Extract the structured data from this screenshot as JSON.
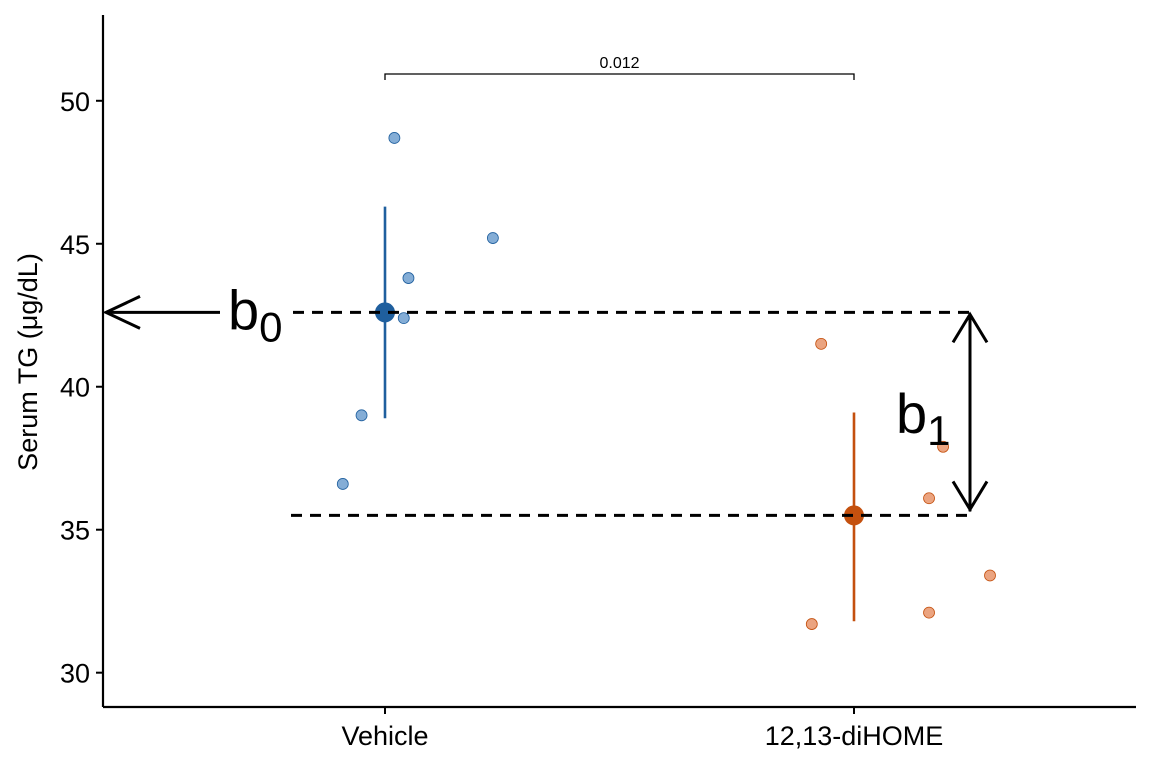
{
  "chart_data": {
    "type": "scatter",
    "ylabel": "Serum TG (μg/dL)",
    "xlabel": "",
    "categories": [
      "Vehicle",
      "12,13-diHOME"
    ],
    "ylim": [
      28.8,
      53.0
    ],
    "yticks": [
      30,
      35,
      40,
      45,
      50
    ],
    "grid": false,
    "series": [
      {
        "category": "Vehicle",
        "color": "#1f5f9e",
        "point_color": "#6f9fcf",
        "points": [
          {
            "x_jitter": 0.02,
            "y": 48.7
          },
          {
            "x_jitter": 0.23,
            "y": 45.2
          },
          {
            "x_jitter": 0.05,
            "y": 43.8
          },
          {
            "x_jitter": 0.04,
            "y": 42.4
          },
          {
            "x_jitter": -0.05,
            "y": 39.0
          },
          {
            "x_jitter": -0.09,
            "y": 36.6
          }
        ],
        "mean": 42.6,
        "ci": [
          38.9,
          46.3
        ]
      },
      {
        "category": "12,13-diHOME",
        "color": "#c4500e",
        "point_color": "#e8946a",
        "points": [
          {
            "x_jitter": -0.07,
            "y": 41.5
          },
          {
            "x_jitter": 0.19,
            "y": 37.9
          },
          {
            "x_jitter": 0.16,
            "y": 36.1
          },
          {
            "x_jitter": 0.29,
            "y": 33.4
          },
          {
            "x_jitter": 0.16,
            "y": 32.1
          },
          {
            "x_jitter": -0.09,
            "y": 31.7
          }
        ],
        "mean": 35.5,
        "ci": [
          31.8,
          39.1
        ]
      }
    ],
    "comparison": {
      "from": "Vehicle",
      "to": "12,13-diHOME",
      "p_value": "0.012"
    },
    "annotations": {
      "b0": {
        "base": "b",
        "sub": "0",
        "y": 42.6
      },
      "b1": {
        "base": "b",
        "sub": "1",
        "y_top": 42.6,
        "y_bottom": 35.5
      }
    }
  }
}
